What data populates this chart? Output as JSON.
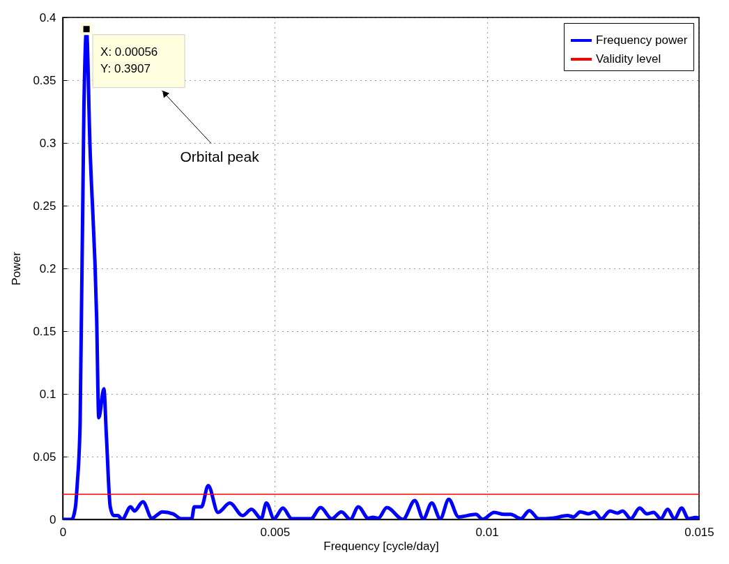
{
  "chart_data": {
    "type": "line",
    "xlabel": "Frequency [cycle/day]",
    "ylabel": "Power",
    "xlim": [
      0,
      0.015
    ],
    "xticks": [
      0,
      0.005,
      0.01,
      0.015
    ],
    "ylim": [
      0,
      0.4
    ],
    "yticks": [
      0,
      0.05,
      0.1,
      0.15,
      0.2,
      0.25,
      0.3,
      0.35,
      0.4
    ],
    "grid": true,
    "legend": "top right",
    "line_style": "solid",
    "series": [
      {
        "name": "Frequency power",
        "color": "#0000ff",
        "x": [
          0,
          0.00021,
          0.0003,
          0.00034,
          0.00041,
          0.0005,
          0.00056,
          0.00064,
          0.0008,
          0.00085,
          0.00097,
          0.00103,
          0.00112,
          0.0012,
          0.0013,
          0.0014,
          0.0016,
          0.00169,
          0.00189,
          0.0021,
          0.00235,
          0.0026,
          0.0028,
          0.00304,
          0.0031,
          0.00327,
          0.00343,
          0.00366,
          0.00394,
          0.00424,
          0.00445,
          0.00468,
          0.0048,
          0.00498,
          0.00519,
          0.0054,
          0.00585,
          0.00608,
          0.00634,
          0.00657,
          0.00678,
          0.00697,
          0.0072,
          0.00731,
          0.00744,
          0.00764,
          0.00802,
          0.0083,
          0.0085,
          0.0087,
          0.0089,
          0.0091,
          0.00933,
          0.00974,
          0.0099,
          0.01017,
          0.0104,
          0.01056,
          0.0108,
          0.011,
          0.01122,
          0.01155,
          0.0119,
          0.01204,
          0.0122,
          0.0124,
          0.01253,
          0.0127,
          0.0129,
          0.01308,
          0.0132,
          0.01339,
          0.0136,
          0.01377,
          0.01393,
          0.0141,
          0.01426,
          0.01442,
          0.01459,
          0.01475,
          0.01492,
          0.015
        ],
        "values": [
          0,
          0,
          0.01,
          0.027,
          0.077,
          0.33,
          0.3907,
          0.3,
          0.16,
          0.081,
          0.104,
          0.066,
          0.01,
          0.003,
          0.003,
          0,
          0.01,
          0.0067,
          0.014,
          0.001,
          0.006,
          0.0044,
          0.0005,
          0.0005,
          0.01,
          0.01,
          0.027,
          0.0056,
          0.013,
          0.003,
          0.008,
          0.0006,
          0.013,
          0.0005,
          0.009,
          0.0005,
          0.0005,
          0.0094,
          0.0005,
          0.006,
          0,
          0.01,
          0.001,
          0.0017,
          0.001,
          0.0094,
          0,
          0.015,
          0.0005,
          0.013,
          0.0005,
          0.016,
          0.002,
          0.004,
          0,
          0.0056,
          0.004,
          0.004,
          0.0005,
          0.007,
          0.0005,
          0.001,
          0.003,
          0.002,
          0.006,
          0.0044,
          0.006,
          0.0005,
          0.0067,
          0.005,
          0.0067,
          0.0005,
          0.009,
          0.0044,
          0.0056,
          0.0005,
          0.008,
          0.0005,
          0.009,
          0.0005,
          0.0015,
          0.001
        ]
      },
      {
        "name": "Validity level",
        "color": "#ff0000",
        "x": [
          0,
          0.015
        ],
        "values": [
          0.02,
          0.02
        ]
      }
    ],
    "annotations": [
      {
        "text": "X: 0.00056\nY: 0.3907",
        "x": 0.00056,
        "y": 0.3907
      },
      "Orbital peak"
    ]
  }
}
